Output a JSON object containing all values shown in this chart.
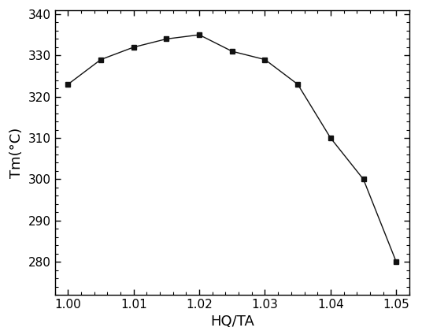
{
  "x": [
    1.0,
    1.005,
    1.01,
    1.015,
    1.02,
    1.025,
    1.03,
    1.035,
    1.04,
    1.045,
    1.05
  ],
  "y": [
    323,
    329,
    332,
    334,
    335,
    331,
    329,
    323,
    310,
    300,
    280
  ],
  "xlabel": "HQ/TA",
  "ylabel": "Tm(°C)",
  "xlim": [
    0.998,
    1.052
  ],
  "ylim": [
    272,
    341
  ],
  "xticks": [
    1.0,
    1.01,
    1.02,
    1.03,
    1.04,
    1.05
  ],
  "yticks": [
    280,
    290,
    300,
    310,
    320,
    330,
    340
  ],
  "marker": "s",
  "marker_color": "#111111",
  "line_color": "#111111",
  "marker_size": 5,
  "line_width": 1.0,
  "background_color": "#ffffff",
  "xlabel_fontsize": 13,
  "ylabel_fontsize": 13,
  "tick_fontsize": 11
}
